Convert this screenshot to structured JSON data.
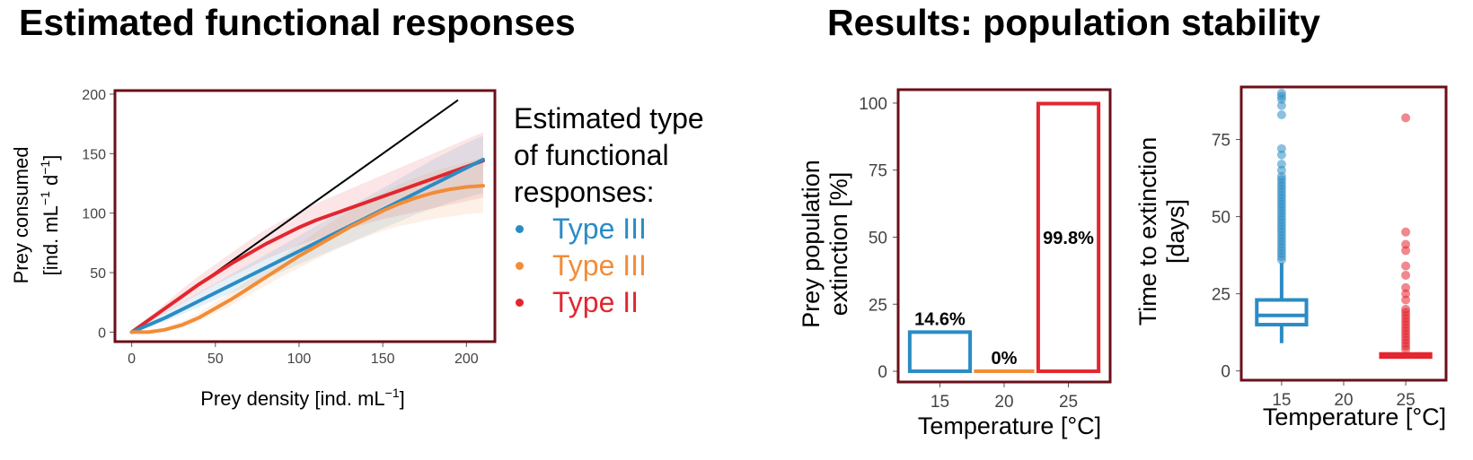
{
  "left_title": "Estimated functional responses",
  "right_title": "Results: population stability",
  "legend": {
    "title_lines": [
      "Estimated type",
      "of functional",
      "responses:"
    ],
    "items": [
      {
        "label": "Type III",
        "color": "#2b8cc4"
      },
      {
        "label": "Type III",
        "color": "#f28c38"
      },
      {
        "label": "Type II",
        "color": "#e3262f"
      }
    ]
  },
  "colors": {
    "frame": "#6b0f1a",
    "reference_line": "#000000"
  },
  "chart_data": [
    {
      "type": "line",
      "xlabel": "Prey density [ind. mL",
      "xlabel_sup": "−1",
      "xlabel_end": "]",
      "ylabel_line1": "Prey consumed",
      "ylabel_line2_parts": [
        "[ind. mL",
        "−1",
        " d",
        "−1",
        "]"
      ],
      "xlim": [
        -10,
        217
      ],
      "ylim": [
        -8,
        203
      ],
      "xticks": [
        0,
        50,
        100,
        150,
        200
      ],
      "yticks": [
        0,
        50,
        100,
        150,
        200
      ],
      "x": [
        0,
        10,
        20,
        30,
        40,
        50,
        60,
        70,
        80,
        90,
        100,
        110,
        120,
        130,
        140,
        150,
        160,
        170,
        180,
        190,
        200,
        210
      ],
      "reference_line": {
        "x": [
          0,
          195
        ],
        "y": [
          0,
          195
        ]
      },
      "series": [
        {
          "color": "#e3262f",
          "values": [
            0,
            10,
            20,
            30,
            40,
            49,
            58,
            66,
            74,
            81,
            88,
            94,
            99,
            104,
            109,
            114,
            119,
            124,
            129,
            134,
            139,
            144
          ],
          "band_lo": [
            0,
            8,
            16,
            24,
            32,
            40,
            47,
            54,
            61,
            67,
            73,
            78,
            83,
            87,
            91,
            95,
            98,
            101,
            104,
            107,
            110,
            113
          ],
          "band_hi": [
            0,
            12,
            24,
            36,
            47,
            57,
            67,
            77,
            86,
            94,
            101,
            108,
            114,
            120,
            126,
            132,
            138,
            144,
            150,
            156,
            162,
            168
          ]
        },
        {
          "color": "#2b8cc4",
          "values": [
            0,
            6,
            12,
            19,
            26,
            33,
            40,
            47,
            54,
            61,
            68,
            75,
            82,
            89,
            96,
            103,
            110,
            117,
            124,
            131,
            138,
            145
          ],
          "band_lo": [
            0,
            4,
            9,
            15,
            21,
            27,
            33,
            39,
            45,
            51,
            57,
            63,
            69,
            75,
            81,
            87,
            93,
            99,
            104,
            109,
            113,
            117
          ],
          "band_hi": [
            0,
            9,
            17,
            25,
            33,
            41,
            49,
            57,
            65,
            73,
            81,
            89,
            97,
            105,
            113,
            121,
            129,
            137,
            145,
            152,
            159,
            165
          ]
        },
        {
          "color": "#f28c38",
          "values": [
            0,
            0,
            2,
            6,
            12,
            20,
            28,
            37,
            46,
            55,
            64,
            72,
            80,
            88,
            95,
            102,
            108,
            113,
            117,
            120,
            122,
            123
          ],
          "band_lo": [
            0,
            0,
            1,
            4,
            9,
            16,
            23,
            31,
            39,
            47,
            54,
            61,
            68,
            74,
            80,
            85,
            89,
            92,
            95,
            97,
            99,
            100
          ],
          "band_hi": [
            0,
            1,
            4,
            9,
            16,
            25,
            34,
            44,
            54,
            64,
            74,
            84,
            93,
            102,
            110,
            117,
            124,
            130,
            135,
            139,
            143,
            147
          ]
        }
      ]
    },
    {
      "type": "bar",
      "categories": [
        "15",
        "20",
        "25"
      ],
      "values": [
        14.6,
        0,
        99.8
      ],
      "value_labels": [
        "14.6%",
        "0%",
        "99.8%"
      ],
      "colors": [
        "#2b8cc4",
        "#f28c38",
        "#e3262f"
      ],
      "ylim": [
        -4,
        105
      ],
      "yticks": [
        0,
        25,
        50,
        75,
        100
      ],
      "xlabel": "Temperature [°C]",
      "ylabel_lines": [
        "Prey population",
        "extinction [%]"
      ]
    },
    {
      "type": "box",
      "categories": [
        "15",
        "20",
        "25"
      ],
      "ylim": [
        -3,
        92
      ],
      "yticks": [
        0,
        25,
        50,
        75
      ],
      "xlabel": "Temperature [°C]",
      "ylabel_lines": [
        "Time to extinction",
        "[days]"
      ],
      "boxes": [
        {
          "category": "15",
          "color": "#2b8cc4",
          "whisker_low": 9,
          "q1": 15,
          "median": 18,
          "q3": 23,
          "whisker_high": 35,
          "outliers": [
            36,
            37,
            38,
            39,
            40,
            41,
            42,
            43,
            44,
            45,
            46,
            47,
            48,
            49,
            50,
            51,
            52,
            53,
            54,
            55,
            56,
            57,
            58,
            59,
            60,
            61,
            62,
            63,
            65,
            67,
            70,
            72,
            83,
            86,
            88,
            89,
            90
          ]
        },
        {
          "category": "25",
          "color": "#e3262f",
          "whisker_low": 4,
          "q1": 4.5,
          "median": 5,
          "q3": 5.5,
          "whisker_high": 6,
          "outliers": [
            7,
            8,
            9,
            10,
            11,
            12,
            13,
            14,
            15,
            16,
            17,
            18,
            19,
            20,
            23,
            25,
            27,
            31,
            34,
            39,
            41,
            45,
            82
          ]
        }
      ]
    }
  ]
}
